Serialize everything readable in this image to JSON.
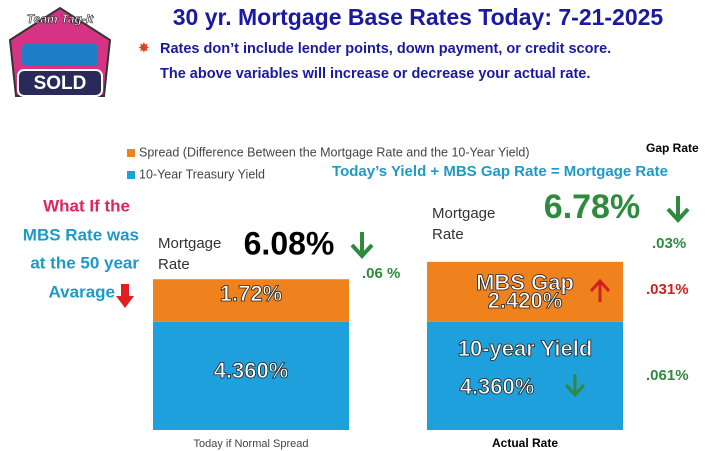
{
  "chart_data": {
    "type": "stacked-bar",
    "logo": {
      "top": "Team Tag-It",
      "bottom": "SOLD"
    },
    "title": "30 yr. Mortgage Base Rates Today: 7-21-2025",
    "notes": [
      "Rates don’t include lender points, down payment, or credit score.",
      "The above variables will increase or decrease your actual rate."
    ],
    "categories": [
      "Today if Normal Spread",
      "Actual Rate"
    ],
    "series": [
      {
        "name": "10-Year Treasury Yield",
        "color": "#1ea0dc",
        "values": [
          4.36,
          4.36
        ],
        "value_labels": [
          "4.360%",
          "4.360%"
        ]
      },
      {
        "name": "Spread (Difference Between the Mortgage Rate and the 10-Year Yield)",
        "color": "#f0821e",
        "values": [
          1.72,
          2.42
        ],
        "value_labels": [
          "1.72%",
          "2.420%"
        ]
      }
    ],
    "legend": "top-left",
    "annotations": {
      "gap_rate": "Gap Rate",
      "formula": "Today’s  Yield +  MBS Gap Rate = Mortgage Rate",
      "what_if": [
        "What If the",
        "MBS Rate was",
        "at the 50 year",
        "Avarage"
      ],
      "mortgage_rate_1": [
        "Mortgage",
        "Rate"
      ],
      "mortgage_rate_2": [
        "Mortgage",
        "Rate"
      ],
      "total_1": "6.08%",
      "total_2": "6.78%",
      "change_total_1": ".06 %",
      "change_total_2": ".03%",
      "mbs_gap": "MBS Gap",
      "change_gap": ".031%",
      "ten_year": "10-year Yield",
      "change_yield": ".061%"
    }
  }
}
